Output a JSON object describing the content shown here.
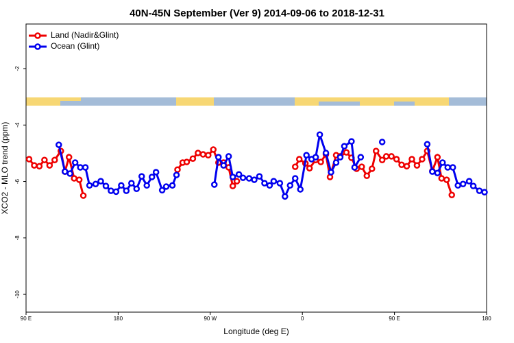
{
  "chart_data": {
    "type": "line",
    "title": "40N-45N September (Ver 9)   2014-09-06 to 2018-12-31",
    "x_label": "Longitude (deg E)",
    "y_label": "XCO2 - MLO trend (ppm)",
    "xlim": [
      90,
      540
    ],
    "xticks": [
      {
        "value": 90,
        "label": "90 E"
      },
      {
        "value": 180,
        "label": "180"
      },
      {
        "value": 270,
        "label": "90 W"
      },
      {
        "value": 360,
        "label": "0"
      },
      {
        "value": 450,
        "label": "90 E"
      },
      {
        "value": 540,
        "label": "180"
      }
    ],
    "ylim": [
      -10.63,
      -0.42
    ],
    "yticks": [
      -2,
      -4,
      -6,
      -8,
      -10
    ],
    "legend": "top-left",
    "series": [
      {
        "name": "Land (Nadir&Glint)",
        "color": "#ee0000",
        "x": [
          93,
          98,
          103,
          108,
          113,
          118,
          124,
          128,
          132,
          137,
          142,
          146,
          null,
          238,
          243,
          247,
          253,
          258,
          263,
          268,
          273,
          278,
          283,
          288,
          292,
          296,
          null,
          353,
          357,
          363,
          367,
          373,
          378,
          383,
          387,
          393,
          397,
          403,
          408,
          413,
          418,
          423,
          428,
          432,
          438,
          442,
          447,
          452,
          457,
          462,
          467,
          472,
          477,
          482,
          487,
          492,
          496,
          501,
          506
        ],
        "values": [
          -5.21,
          -5.43,
          -5.46,
          -5.24,
          -5.43,
          -5.24,
          -4.92,
          -5.65,
          -5.14,
          -5.89,
          -5.94,
          -6.5,
          null,
          -5.58,
          -5.33,
          -5.31,
          -5.19,
          -4.99,
          -5.04,
          -5.07,
          -4.87,
          -5.33,
          -5.33,
          -5.5,
          -6.16,
          -5.99,
          null,
          -5.48,
          -5.21,
          -5.36,
          -5.53,
          -5.24,
          -5.31,
          -5.04,
          -5.84,
          -5.07,
          -5.11,
          -4.97,
          -5.16,
          -5.55,
          -5.48,
          -5.8,
          -5.55,
          -4.92,
          -5.24,
          -5.11,
          -5.11,
          -5.21,
          -5.41,
          -5.46,
          -5.21,
          -5.43,
          -5.21,
          -4.92,
          -5.63,
          -5.14,
          -5.89,
          -5.94,
          -6.48
        ]
      },
      {
        "name": "Ocean (Glint)",
        "color": "#0000ee",
        "x": [
          122,
          128,
          133,
          138,
          143,
          148,
          152,
          158,
          163,
          168,
          173,
          178,
          183,
          188,
          193,
          198,
          203,
          208,
          213,
          217,
          223,
          227,
          233,
          237,
          null,
          274,
          278,
          283,
          288,
          292,
          298,
          302,
          308,
          313,
          318,
          323,
          328,
          332,
          338,
          343,
          348,
          353,
          358,
          364,
          369,
          373,
          377,
          383,
          388,
          393,
          397,
          401,
          408,
          411,
          417,
          null,
          438,
          null,
          482,
          487,
          492,
          497,
          502,
          507,
          512,
          517,
          523,
          527,
          533,
          538
        ],
        "values": [
          -4.7,
          -5.65,
          -5.72,
          -5.33,
          -5.5,
          -5.5,
          -6.14,
          -6.09,
          -5.99,
          -6.16,
          -6.33,
          -6.36,
          -6.14,
          -6.33,
          -6.06,
          -6.26,
          -5.82,
          -6.14,
          -5.84,
          -5.67,
          -6.31,
          -6.18,
          -6.14,
          -5.77,
          null,
          -6.11,
          -5.14,
          -5.43,
          -5.11,
          -5.84,
          -5.75,
          -5.87,
          -5.89,
          -5.94,
          -5.82,
          -6.06,
          -6.14,
          -5.99,
          -6.06,
          -6.53,
          -6.14,
          -5.89,
          -6.28,
          -5.07,
          -5.21,
          -5.14,
          -4.34,
          -4.99,
          -5.67,
          -5.33,
          -5.14,
          -4.75,
          -4.58,
          -5.5,
          -5.14,
          null,
          -4.6,
          null,
          -4.68,
          -5.65,
          -5.7,
          -5.33,
          -5.5,
          -5.5,
          -6.14,
          -6.09,
          -5.99,
          -6.16,
          -6.33,
          -6.38
        ]
      }
    ]
  }
}
